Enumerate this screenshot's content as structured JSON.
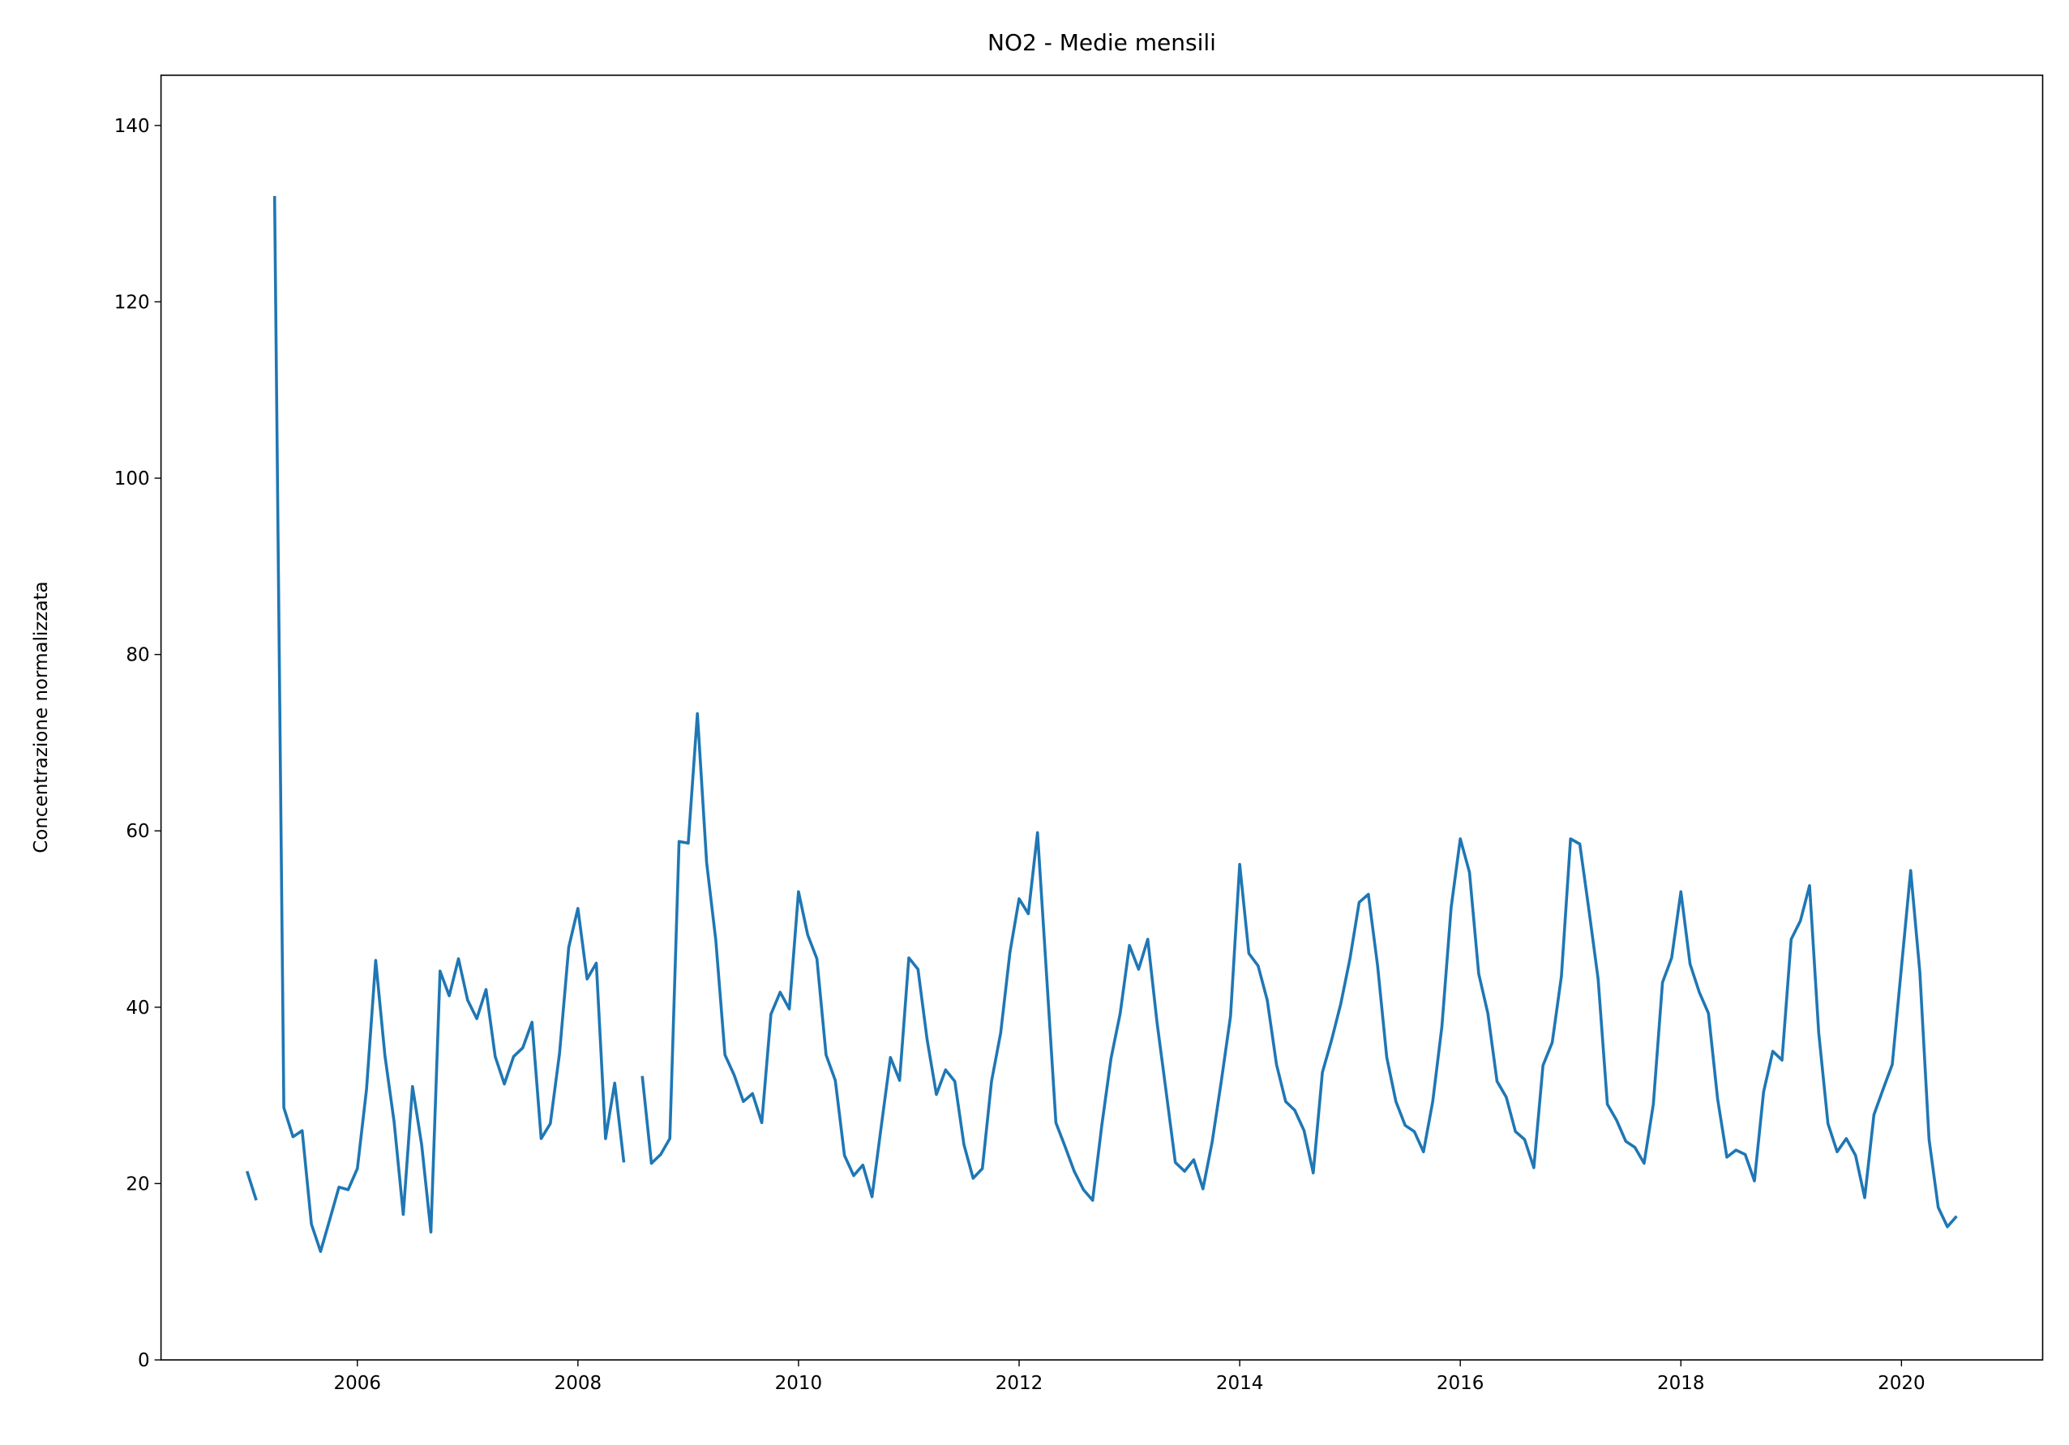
{
  "chart_data": {
    "type": "line",
    "title": "NO2 - Medie mensili",
    "y_label": "Concentrazione normalizzata",
    "color": "#1f77b4",
    "x": [
      "2005-01",
      "2005-02",
      "2005-03",
      "2005-04",
      "2005-05",
      "2005-06",
      "2005-07",
      "2005-08",
      "2005-09",
      "2005-10",
      "2005-11",
      "2005-12",
      "2006-01",
      "2006-02",
      "2006-03",
      "2006-04",
      "2006-05",
      "2006-06",
      "2006-07",
      "2006-08",
      "2006-09",
      "2006-10",
      "2006-11",
      "2006-12",
      "2007-01",
      "2007-02",
      "2007-03",
      "2007-04",
      "2007-05",
      "2007-06",
      "2007-07",
      "2007-08",
      "2007-09",
      "2007-10",
      "2007-11",
      "2007-12",
      "2008-01",
      "2008-02",
      "2008-03",
      "2008-04",
      "2008-05",
      "2008-06",
      "2008-07",
      "2008-08",
      "2008-09",
      "2008-10",
      "2008-11",
      "2008-12",
      "2009-01",
      "2009-02",
      "2009-03",
      "2009-04",
      "2009-05",
      "2009-06",
      "2009-07",
      "2009-08",
      "2009-09",
      "2009-10",
      "2009-11",
      "2009-12",
      "2010-01",
      "2010-02",
      "2010-03",
      "2010-04",
      "2010-05",
      "2010-06",
      "2010-07",
      "2010-08",
      "2010-09",
      "2010-10",
      "2010-11",
      "2010-12",
      "2011-01",
      "2011-02",
      "2011-03",
      "2011-04",
      "2011-05",
      "2011-06",
      "2011-07",
      "2011-08",
      "2011-09",
      "2011-10",
      "2011-11",
      "2011-12",
      "2012-01",
      "2012-02",
      "2012-03",
      "2012-04",
      "2012-05",
      "2012-06",
      "2012-07",
      "2012-08",
      "2012-09",
      "2012-10",
      "2012-11",
      "2012-12",
      "2013-01",
      "2013-02",
      "2013-03",
      "2013-04",
      "2013-05",
      "2013-06",
      "2013-07",
      "2013-08",
      "2013-09",
      "2013-10",
      "2013-11",
      "2013-12",
      "2014-01",
      "2014-02",
      "2014-03",
      "2014-04",
      "2014-05",
      "2014-06",
      "2014-07",
      "2014-08",
      "2014-09",
      "2014-10",
      "2014-11",
      "2014-12",
      "2015-01",
      "2015-02",
      "2015-03",
      "2015-04",
      "2015-05",
      "2015-06",
      "2015-07",
      "2015-08",
      "2015-09",
      "2015-10",
      "2015-11",
      "2015-12",
      "2016-01",
      "2016-02",
      "2016-03",
      "2016-04",
      "2016-05",
      "2016-06",
      "2016-07",
      "2016-08",
      "2016-09",
      "2016-10",
      "2016-11",
      "2016-12",
      "2017-01",
      "2017-02",
      "2017-03",
      "2017-04",
      "2017-05",
      "2017-06",
      "2017-07",
      "2017-08",
      "2017-09",
      "2017-10",
      "2017-11",
      "2017-12",
      "2018-01",
      "2018-02",
      "2018-03",
      "2018-04",
      "2018-05",
      "2018-06",
      "2018-07",
      "2018-08",
      "2018-09",
      "2018-10",
      "2018-11",
      "2018-12",
      "2019-01",
      "2019-02",
      "2019-03",
      "2019-04",
      "2019-05",
      "2019-06",
      "2019-07",
      "2019-08",
      "2019-09",
      "2019-10",
      "2019-11",
      "2019-12",
      "2020-01",
      "2020-02",
      "2020-03",
      "2020-04",
      "2020-05",
      "2020-06",
      "2020-07"
    ],
    "values": [
      21.4,
      18.1,
      null,
      132,
      28.6,
      25.3,
      26,
      15.4,
      12.3,
      15.9,
      19.6,
      19.3,
      21.7,
      30.7,
      45.3,
      34.5,
      27,
      16.5,
      31,
      24.4,
      14.5,
      44.1,
      41.3,
      45.5,
      40.8,
      38.7,
      42,
      34.4,
      31.3,
      34.4,
      35.4,
      38.3,
      25.1,
      26.8,
      34.8,
      46.8,
      51.2,
      43.2,
      45,
      25.1,
      31.4,
      22.4,
      null,
      32.2,
      22.3,
      23.3,
      25.1,
      58.8,
      58.6,
      73.3,
      56.4,
      47.6,
      34.6,
      32.3,
      29.3,
      30.2,
      26.9,
      39.2,
      41.7,
      39.8,
      53.1,
      48.2,
      45.5,
      34.6,
      31.7,
      23.2,
      20.9,
      22.1,
      18.5,
      26.5,
      34.3,
      31.7,
      45.6,
      44.3,
      36.3,
      30.1,
      32.9,
      31.6,
      24.4,
      20.6,
      21.7,
      31.6,
      37.1,
      46.2,
      52.3,
      50.6,
      59.8,
      43.5,
      26.9,
      24.2,
      21.4,
      19.3,
      18.1,
      26.6,
      34.2,
      39.3,
      47,
      44.3,
      47.7,
      38.3,
      30.4,
      22.4,
      21.4,
      22.7,
      19.4,
      24.7,
      31.6,
      39,
      56.2,
      46.1,
      44.7,
      40.8,
      33.5,
      29.3,
      28.3,
      26,
      21.2,
      32.6,
      36.3,
      40.4,
      45.5,
      51.9,
      52.8,
      44.7,
      34.3,
      29.3,
      26.6,
      25.9,
      23.6,
      29.3,
      37.8,
      51.3,
      59.1,
      55.3,
      43.8,
      39.3,
      31.6,
      29.8,
      25.9,
      25,
      21.8,
      33.4,
      36,
      43.5,
      59.1,
      58.5,
      51,
      43.2,
      29,
      27.2,
      24.8,
      24.1,
      22.3,
      29,
      42.8,
      45.6,
      53.1,
      44.9,
      41.7,
      39.3,
      29.6,
      23,
      23.8,
      23.3,
      20.3,
      30.4,
      35,
      34,
      47.7,
      49.8,
      53.8,
      37.1,
      26.8,
      23.6,
      25.1,
      23.2,
      18.4,
      27.8,
      30.7,
      33.5,
      44.6,
      55.5,
      44,
      25,
      17.3,
      15.1,
      16.3
    ],
    "xlim": [
      2004.22,
      2021.28
    ],
    "xticks": [
      2006,
      2008,
      2010,
      2012,
      2014,
      2016,
      2018,
      2020
    ],
    "ylim": [
      0,
      145.7
    ],
    "yticks": [
      0,
      20,
      40,
      60,
      80,
      100,
      120,
      140
    ]
  }
}
